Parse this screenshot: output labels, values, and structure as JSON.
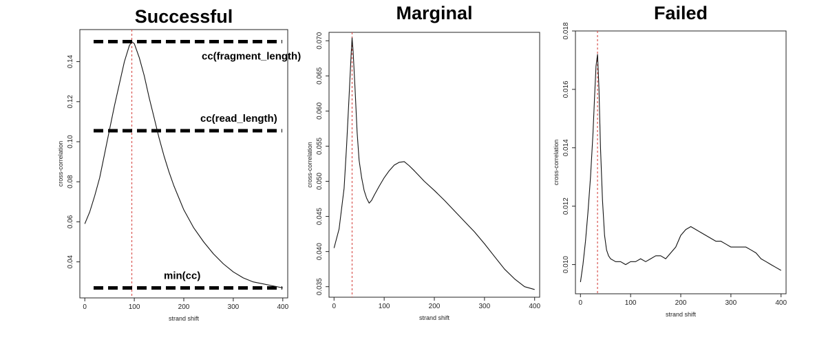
{
  "chart_data": [
    {
      "type": "line",
      "title": "Successful",
      "xlabel": "strand shift",
      "ylabel": "cross-correlation",
      "xlim": [
        -10,
        410
      ],
      "ylim": [
        0.022,
        0.156
      ],
      "x_ticks": [
        "0",
        "100",
        "200",
        "300",
        "400"
      ],
      "y_ticks": [
        "0.04",
        "0.06",
        "0.08",
        "0.10",
        "0.12",
        "0.14"
      ],
      "grid": false,
      "peak_marker_x": 95,
      "reference_lines": [
        {
          "label": "cc(fragment_length)",
          "y": 0.15
        },
        {
          "label": "cc(read_length)",
          "y": 0.1055
        },
        {
          "label": "min(cc)",
          "y": 0.027
        }
      ],
      "series": [
        {
          "x": [
            0,
            10,
            20,
            30,
            40,
            50,
            60,
            70,
            80,
            90,
            95,
            100,
            110,
            120,
            130,
            140,
            150,
            160,
            170,
            180,
            190,
            200,
            220,
            240,
            260,
            280,
            300,
            320,
            340,
            360,
            380,
            400
          ],
          "y": [
            0.059,
            0.065,
            0.073,
            0.082,
            0.094,
            0.106,
            0.118,
            0.129,
            0.14,
            0.148,
            0.15,
            0.149,
            0.142,
            0.133,
            0.122,
            0.112,
            0.102,
            0.093,
            0.085,
            0.078,
            0.072,
            0.066,
            0.057,
            0.05,
            0.044,
            0.039,
            0.035,
            0.032,
            0.03,
            0.029,
            0.028,
            0.027
          ]
        }
      ]
    },
    {
      "type": "line",
      "title": "Marginal",
      "xlabel": "strand shift",
      "ylabel": "cross-correlation",
      "xlim": [
        -10,
        410
      ],
      "ylim": [
        0.0335,
        0.0712
      ],
      "x_ticks": [
        "0",
        "100",
        "200",
        "300",
        "400"
      ],
      "y_ticks": [
        "0.035",
        "0.040",
        "0.045",
        "0.050",
        "0.055",
        "0.060",
        "0.065",
        "0.070"
      ],
      "grid": false,
      "peak_marker_x": 36,
      "series": [
        {
          "x": [
            0,
            10,
            20,
            25,
            30,
            34,
            36,
            38,
            42,
            46,
            50,
            55,
            60,
            65,
            70,
            75,
            80,
            90,
            100,
            110,
            120,
            130,
            140,
            150,
            160,
            180,
            200,
            220,
            240,
            260,
            280,
            300,
            320,
            340,
            360,
            380,
            400
          ],
          "y": [
            0.0405,
            0.0432,
            0.049,
            0.055,
            0.062,
            0.068,
            0.0704,
            0.0685,
            0.063,
            0.057,
            0.053,
            0.0505,
            0.0487,
            0.0476,
            0.0469,
            0.0473,
            0.048,
            0.0493,
            0.0505,
            0.0515,
            0.0523,
            0.0527,
            0.0528,
            0.0522,
            0.0515,
            0.05,
            0.0487,
            0.0473,
            0.0458,
            0.0443,
            0.0428,
            0.0411,
            0.0393,
            0.0375,
            0.0361,
            0.035,
            0.0346
          ]
        }
      ]
    },
    {
      "type": "line",
      "title": "Failed",
      "xlabel": "strand shift",
      "ylabel": "cross-correlation",
      "xlim": [
        -10,
        410
      ],
      "ylim": [
        0.009,
        0.018
      ],
      "x_ticks": [
        "0",
        "100",
        "200",
        "300",
        "400"
      ],
      "y_ticks": [
        "0.010",
        "0.012",
        "0.014",
        "0.016",
        "0.018"
      ],
      "grid": false,
      "peak_marker_x": 34,
      "series": [
        {
          "x": [
            0,
            5,
            10,
            15,
            20,
            25,
            28,
            31,
            34,
            37,
            40,
            44,
            48,
            52,
            56,
            60,
            70,
            80,
            90,
            100,
            110,
            120,
            130,
            140,
            150,
            160,
            170,
            180,
            190,
            200,
            210,
            220,
            230,
            240,
            250,
            260,
            270,
            280,
            290,
            300,
            310,
            320,
            330,
            340,
            350,
            360,
            370,
            380,
            390,
            400
          ],
          "y": [
            0.0094,
            0.01,
            0.0108,
            0.0118,
            0.013,
            0.0145,
            0.0157,
            0.0168,
            0.0172,
            0.016,
            0.014,
            0.0122,
            0.011,
            0.0105,
            0.0103,
            0.0102,
            0.0101,
            0.0101,
            0.01,
            0.0101,
            0.0101,
            0.0102,
            0.0101,
            0.0102,
            0.0103,
            0.0103,
            0.0102,
            0.0104,
            0.0106,
            0.011,
            0.0112,
            0.0113,
            0.0112,
            0.0111,
            0.011,
            0.0109,
            0.0108,
            0.0108,
            0.0107,
            0.0106,
            0.0106,
            0.0106,
            0.0106,
            0.0105,
            0.0104,
            0.0102,
            0.0101,
            0.01,
            0.0099,
            0.0098
          ]
        }
      ]
    }
  ]
}
